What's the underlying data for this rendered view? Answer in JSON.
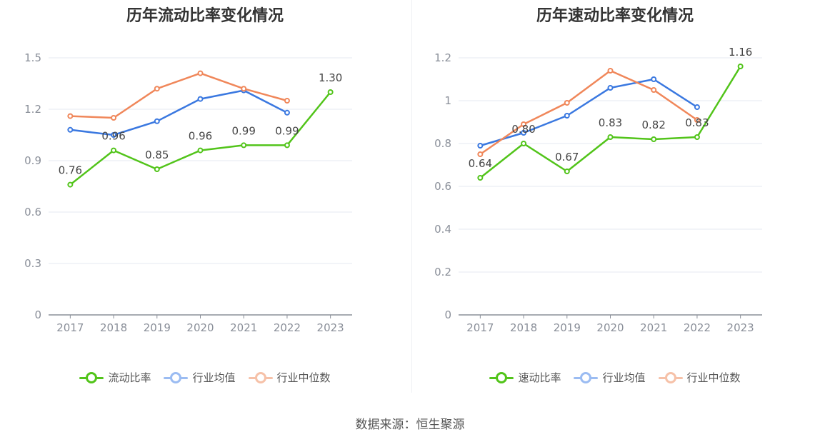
{
  "source_text": "数据来源：恒生聚源",
  "colors": {
    "primary": "#52c41a",
    "industry_avg": "#3a78e0",
    "industry_median": "#f0875a",
    "grid": "#e6e9f2",
    "axis": "#8a8f99"
  },
  "chart_data": [
    {
      "type": "line",
      "title": "历年流动比率变化情况",
      "categories": [
        "2017",
        "2018",
        "2019",
        "2020",
        "2021",
        "2022",
        "2023"
      ],
      "ylim": [
        0,
        1.5
      ],
      "yticks": [
        "0",
        "0.3",
        "0.6",
        "0.9",
        "1.2",
        "1.5"
      ],
      "grid": true,
      "legend_position": "bottom",
      "series": [
        {
          "name": "流动比率",
          "color": "#52c41a",
          "values": [
            0.76,
            0.96,
            0.85,
            0.96,
            0.99,
            0.99,
            1.3
          ],
          "labels": [
            "0.76",
            "0.96",
            "0.85",
            "0.96",
            "0.99",
            "0.99",
            "1.30"
          ]
        },
        {
          "name": "行业均值",
          "color": "#3a78e0",
          "values": [
            1.08,
            1.05,
            1.13,
            1.26,
            1.31,
            1.18,
            null
          ]
        },
        {
          "name": "行业中位数",
          "color": "#f0875a",
          "values": [
            1.16,
            1.15,
            1.32,
            1.41,
            1.32,
            1.25,
            null
          ]
        }
      ]
    },
    {
      "type": "line",
      "title": "历年速动比率变化情况",
      "categories": [
        "2017",
        "2018",
        "2019",
        "2020",
        "2021",
        "2022",
        "2023"
      ],
      "ylim": [
        0,
        1.2
      ],
      "yticks": [
        "0",
        "0.2",
        "0.4",
        "0.6",
        "0.8",
        "1",
        "1.2"
      ],
      "grid": true,
      "legend_position": "bottom",
      "series": [
        {
          "name": "速动比率",
          "color": "#52c41a",
          "values": [
            0.64,
            0.8,
            0.67,
            0.83,
            0.82,
            0.83,
            1.16
          ],
          "labels": [
            "0.64",
            "0.80",
            "0.67",
            "0.83",
            "0.82",
            "0.83",
            "1.16"
          ]
        },
        {
          "name": "行业均值",
          "color": "#3a78e0",
          "values": [
            0.79,
            0.85,
            0.93,
            1.06,
            1.1,
            0.97,
            null
          ]
        },
        {
          "name": "行业中位数",
          "color": "#f0875a",
          "values": [
            0.75,
            0.89,
            0.99,
            1.14,
            1.05,
            0.91,
            null
          ]
        }
      ]
    }
  ]
}
